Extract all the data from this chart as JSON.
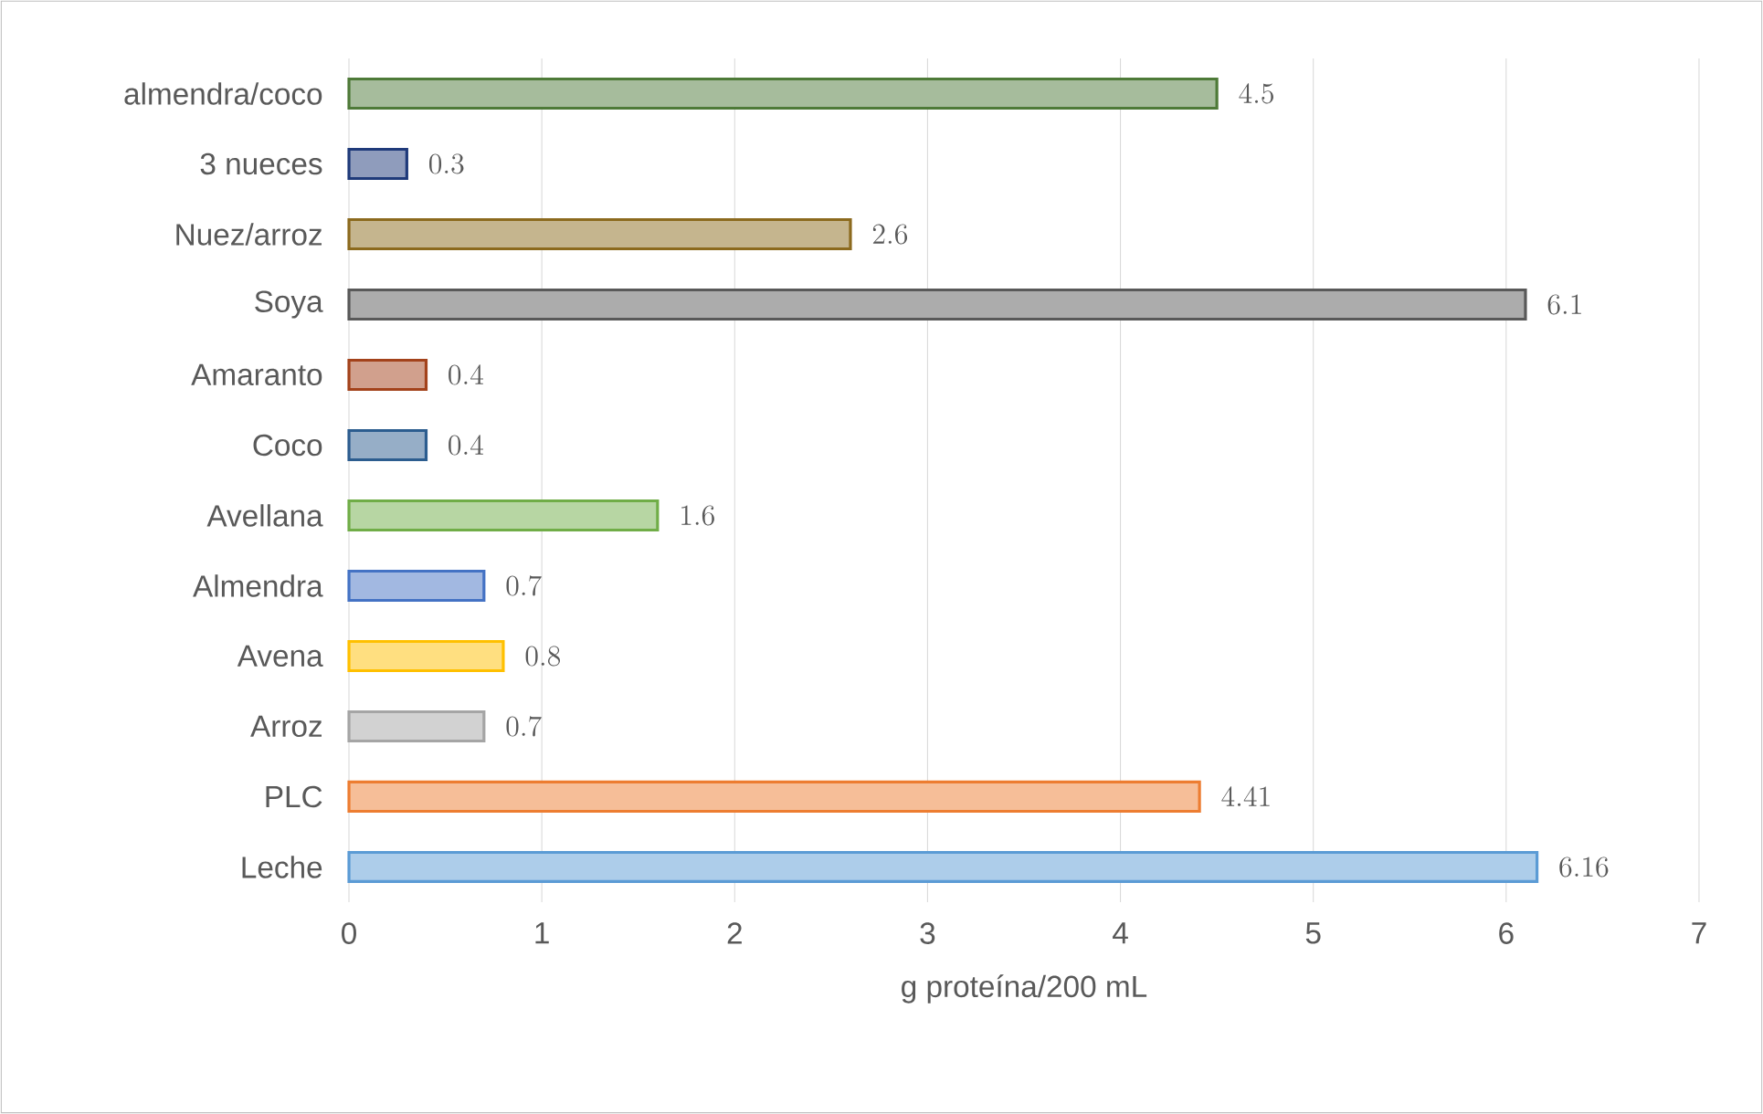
{
  "chart_data": {
    "type": "bar",
    "orientation": "horizontal",
    "xlabel": "g proteína/200 mL",
    "categories": [
      "almendra/coco",
      "3 nueces",
      "Nuez/arroz",
      "Soya",
      "Amaranto",
      "Coco",
      "Avellana",
      "Almendra",
      "Avena",
      "Arroz",
      "PLC",
      "Leche"
    ],
    "values": [
      4.5,
      0.3,
      2.6,
      6.1,
      0.4,
      0.4,
      1.6,
      0.7,
      0.8,
      0.7,
      4.41,
      6.16
    ],
    "colors": [
      "#4e7a38",
      "#1f3a7a",
      "#8c6a1e",
      "#595959",
      "#a3421b",
      "#2c5d8f",
      "#70ad47",
      "#4472c4",
      "#ffc000",
      "#a5a5a5",
      "#ed7d31",
      "#5b9bd5"
    ],
    "xlim": [
      0,
      7
    ],
    "xticks": [
      0,
      1,
      2,
      3,
      4,
      5,
      6,
      7
    ],
    "grid": "x",
    "data_labels": true
  }
}
